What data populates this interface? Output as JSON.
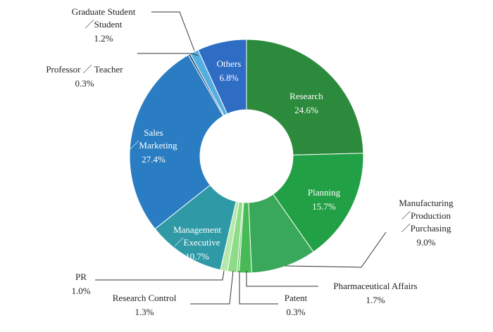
{
  "chart_data": {
    "type": "donut",
    "categories": [
      [
        "Research"
      ],
      [
        "Planning"
      ],
      [
        "Manufacturing",
        "／Production",
        "／Purchasing"
      ],
      [
        "Pharmaceutical Affairs"
      ],
      [
        "Patent"
      ],
      [
        "Research Control"
      ],
      [
        "PR"
      ],
      [
        "Management",
        "／Executive"
      ],
      [
        "Sales",
        "／Marketing"
      ],
      [
        "Professor ／ Teacher"
      ],
      [
        "Graduate Student",
        "／Student"
      ],
      [
        "Others"
      ]
    ],
    "values": [
      24.6,
      15.7,
      9.0,
      1.7,
      0.3,
      1.3,
      1.0,
      10.7,
      27.4,
      0.3,
      1.2,
      6.8
    ],
    "value_labels": [
      "24.6%",
      "15.7%",
      "9.0%",
      "1.7%",
      "0.3%",
      "1.3%",
      "1.0%",
      "10.7%",
      "27.4%",
      "0.3%",
      "1.2%",
      "6.8%"
    ],
    "colors": [
      "#2c8a3c",
      "#22a045",
      "#3aa85a",
      "#45ba55",
      "#6fcf70",
      "#8edb88",
      "#b5e8ab",
      "#2f9aa6",
      "#2a7dc2",
      "#1d4f80",
      "#55aee0",
      "#2f6cc4"
    ]
  }
}
